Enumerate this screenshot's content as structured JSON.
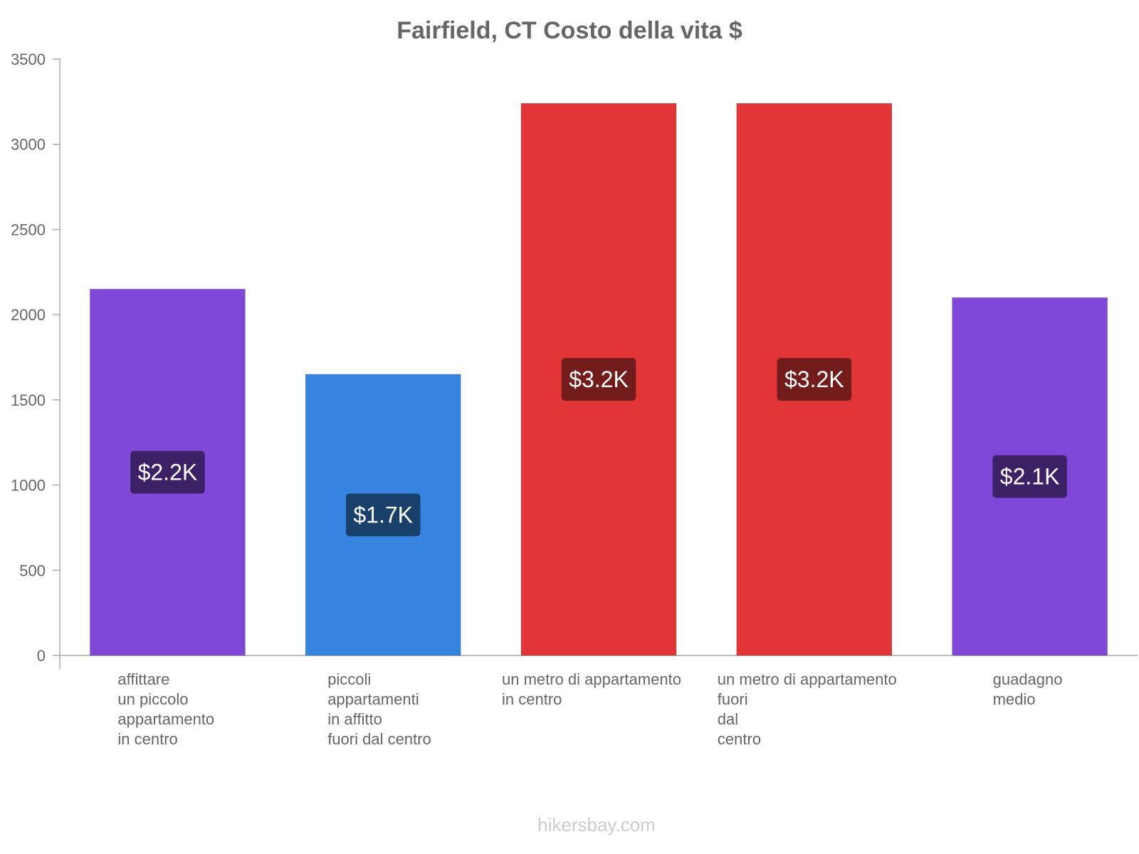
{
  "chart_data": {
    "type": "bar",
    "title": "Fairfield, CT Costo della vita $",
    "xlabel": "",
    "ylabel": "",
    "ylim": [
      0,
      3500
    ],
    "yticks": [
      0,
      500,
      1000,
      1500,
      2000,
      2500,
      3000,
      3500
    ],
    "categories": [
      [
        "affittare",
        "un piccolo",
        "appartamento",
        "in centro"
      ],
      [
        "piccoli",
        "appartamenti",
        "in affitto",
        "fuori dal centro"
      ],
      [
        "un metro di appartamento",
        "in centro"
      ],
      [
        "un metro di appartamento",
        "fuori",
        "dal",
        "centro"
      ],
      [
        "guadagno",
        "medio"
      ]
    ],
    "values": [
      2150,
      1650,
      3240,
      3240,
      2100
    ],
    "value_labels": [
      "$2.2K",
      "$1.7K",
      "$3.2K",
      "$3.2K",
      "$2.1K"
    ],
    "bar_colors": [
      "#8048d8",
      "#3684e0",
      "#e13537",
      "#e13537",
      "#8048d8"
    ],
    "label_bg_colors": [
      "#3c2166",
      "#193f6b",
      "#721c1c",
      "#721c1c",
      "#3c2166"
    ],
    "axis_color": "#aaaaaa",
    "watermark": "hikersbay.com"
  }
}
